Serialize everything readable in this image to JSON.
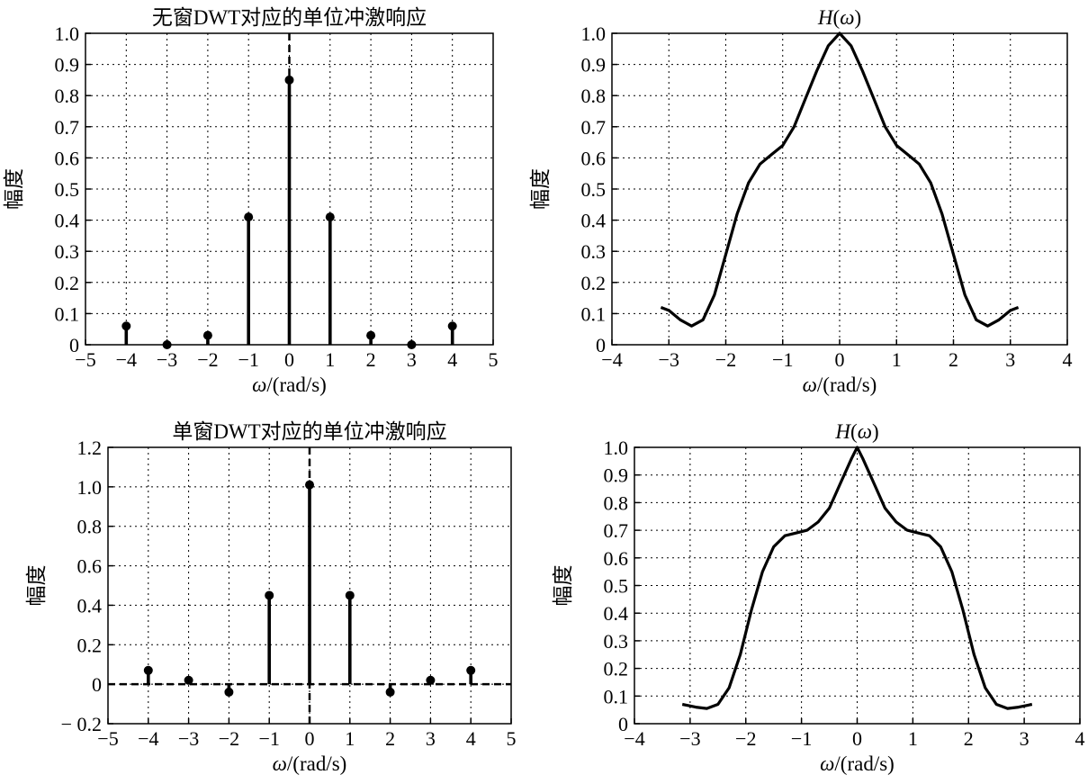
{
  "chart_data": [
    {
      "type": "stem",
      "title": "无窗DWT对应的单位冲激响应",
      "xlabel": "ω/(rad/s)",
      "ylabel": "幅度",
      "xlim": [
        -5,
        5
      ],
      "ylim": [
        0,
        1.0
      ],
      "xticks": [
        -5,
        -4,
        -3,
        -2,
        -1,
        0,
        1,
        2,
        3,
        4,
        5
      ],
      "xtick_labels": [
        "−5",
        "−4",
        "−3",
        "−2",
        "−1",
        "0",
        "1",
        "2",
        "3",
        "4",
        "5"
      ],
      "yticks": [
        0,
        0.1,
        0.2,
        0.3,
        0.4,
        0.5,
        0.6,
        0.7,
        0.8,
        0.9,
        1.0
      ],
      "ytick_labels": [
        "0",
        "0.1",
        "0.2",
        "0.3",
        "0.4",
        "0.5",
        "0.6",
        "0.7",
        "0.8",
        "0.9",
        "1.0"
      ],
      "grid": true,
      "x": [
        -4,
        -3,
        -2,
        -1,
        0,
        1,
        2,
        3,
        4
      ],
      "values": [
        0.06,
        0.0,
        0.03,
        0.41,
        0.85,
        0.41,
        0.03,
        0.0,
        0.06
      ],
      "vertical_dashed_line_x": 0,
      "horizontal_dashed_line_y": null
    },
    {
      "type": "line",
      "title": "H(ω)",
      "xlabel": "ω/(rad/s)",
      "ylabel": "幅度",
      "xlim": [
        -4,
        4
      ],
      "ylim": [
        0,
        1.0
      ],
      "xticks": [
        -4,
        -3,
        -2,
        -1,
        0,
        1,
        2,
        3,
        4
      ],
      "xtick_labels": [
        "−4",
        "−3",
        "−2",
        "−1",
        "0",
        "1",
        "2",
        "3",
        "4"
      ],
      "yticks": [
        0,
        0.1,
        0.2,
        0.3,
        0.4,
        0.5,
        0.6,
        0.7,
        0.8,
        0.9,
        1.0
      ],
      "ytick_labels": [
        "0",
        "0.1",
        "0.2",
        "0.3",
        "0.4",
        "0.5",
        "0.6",
        "0.7",
        "0.8",
        "0.9",
        "1.0"
      ],
      "grid": true,
      "x": [
        -3.14,
        -3.0,
        -2.8,
        -2.6,
        -2.4,
        -2.2,
        -2.0,
        -1.8,
        -1.6,
        -1.4,
        -1.2,
        -1.0,
        -0.8,
        -0.6,
        -0.4,
        -0.2,
        0.0,
        0.2,
        0.4,
        0.6,
        0.8,
        1.0,
        1.2,
        1.4,
        1.6,
        1.8,
        2.0,
        2.2,
        2.4,
        2.6,
        2.8,
        3.0,
        3.14
      ],
      "y": [
        0.12,
        0.11,
        0.08,
        0.06,
        0.08,
        0.16,
        0.29,
        0.42,
        0.52,
        0.58,
        0.61,
        0.64,
        0.7,
        0.79,
        0.88,
        0.96,
        1.0,
        0.96,
        0.88,
        0.79,
        0.7,
        0.64,
        0.61,
        0.58,
        0.52,
        0.42,
        0.29,
        0.16,
        0.08,
        0.06,
        0.08,
        0.11,
        0.12
      ]
    },
    {
      "type": "stem",
      "title": "单窗DWT对应的单位冲激响应",
      "xlabel": "ω/(rad/s)",
      "ylabel": "幅度",
      "xlim": [
        -5,
        5
      ],
      "ylim": [
        -0.2,
        1.2
      ],
      "xticks": [
        -5,
        -4,
        -3,
        -2,
        -1,
        0,
        1,
        2,
        3,
        4,
        5
      ],
      "xtick_labels": [
        "−5",
        "−4",
        "−3",
        "−2",
        "−1",
        "0",
        "1",
        "2",
        "3",
        "4",
        "5"
      ],
      "yticks": [
        -0.2,
        0,
        0.2,
        0.4,
        0.6,
        0.8,
        1.0,
        1.2
      ],
      "ytick_labels": [
        "− 0.2",
        "0",
        "0.2",
        "0.4",
        "0.6",
        "0.8",
        "1.0",
        "1.2"
      ],
      "grid": true,
      "x": [
        -4,
        -3,
        -2,
        -1,
        0,
        1,
        2,
        3,
        4
      ],
      "values": [
        0.07,
        0.02,
        -0.04,
        0.45,
        1.01,
        0.45,
        -0.04,
        0.02,
        0.07
      ],
      "vertical_dashed_line_x": 0,
      "horizontal_dashed_line_y": 0
    },
    {
      "type": "line",
      "title": "H(ω)",
      "xlabel": "ω/(rad/s)",
      "ylabel": "幅度",
      "xlim": [
        -4,
        4
      ],
      "ylim": [
        0,
        1.0
      ],
      "xticks": [
        -4,
        -3,
        -2,
        -1,
        0,
        1,
        2,
        3,
        4
      ],
      "xtick_labels": [
        "−4",
        "−3",
        "−2",
        "−1",
        "0",
        "1",
        "2",
        "3",
        "4"
      ],
      "yticks": [
        0,
        0.1,
        0.2,
        0.3,
        0.4,
        0.5,
        0.6,
        0.7,
        0.8,
        0.9,
        1.0
      ],
      "ytick_labels": [
        "0",
        "0.1",
        "0.2",
        "0.3",
        "0.4",
        "0.5",
        "0.6",
        "0.7",
        "0.8",
        "0.9",
        "1.0"
      ],
      "grid": true,
      "x": [
        -3.14,
        -2.9,
        -2.7,
        -2.5,
        -2.3,
        -2.1,
        -1.9,
        -1.7,
        -1.5,
        -1.3,
        -1.1,
        -0.9,
        -0.7,
        -0.5,
        -0.3,
        -0.1,
        0.0,
        0.1,
        0.3,
        0.5,
        0.7,
        0.9,
        1.1,
        1.3,
        1.5,
        1.7,
        1.9,
        2.1,
        2.3,
        2.5,
        2.7,
        2.9,
        3.14
      ],
      "y": [
        0.07,
        0.06,
        0.055,
        0.07,
        0.13,
        0.25,
        0.41,
        0.55,
        0.64,
        0.68,
        0.69,
        0.7,
        0.73,
        0.78,
        0.87,
        0.96,
        1.0,
        0.96,
        0.87,
        0.78,
        0.73,
        0.7,
        0.69,
        0.68,
        0.64,
        0.55,
        0.41,
        0.25,
        0.13,
        0.07,
        0.055,
        0.06,
        0.07
      ]
    }
  ]
}
